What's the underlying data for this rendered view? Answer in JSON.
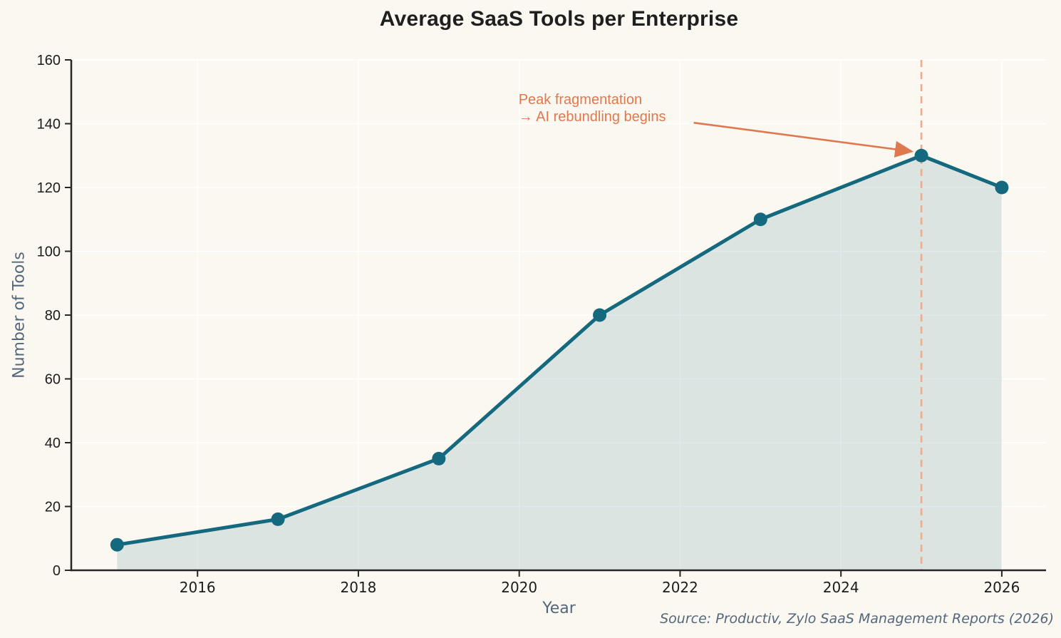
{
  "page": {
    "source_note": "Source: Productiv, Zylo SaaS Management Reports (2026)"
  },
  "chart_data": {
    "type": "area",
    "title": "Average SaaS Tools per Enterprise",
    "x": [
      2015,
      2017,
      2019,
      2021,
      2023,
      2025,
      2026
    ],
    "values": [
      8,
      16,
      35,
      80,
      110,
      130,
      120
    ],
    "xlabel": "Year",
    "ylabel": "Number of Tools",
    "xlim": [
      2014.43,
      2026.55
    ],
    "ylim": [
      0,
      160
    ],
    "xticks": [
      2016,
      2018,
      2020,
      2022,
      2024,
      2026
    ],
    "yticks": [
      0,
      20,
      40,
      60,
      80,
      100,
      120,
      140,
      160
    ],
    "grid": true,
    "legend": "none",
    "vline_x": 2025,
    "annotation": {
      "line1": "Peak fragmentation",
      "line2": "→ AI rebundling begins",
      "text_xy": [
        2020,
        150.2
      ],
      "arrow_from": [
        2022.17,
        140.3
      ],
      "arrow_to": [
        2024.88,
        131.3
      ]
    },
    "colors": {
      "background": "#faf8f0",
      "line": "#15697e",
      "marker": "#15697e",
      "fill": "#3c7d8c",
      "fill_opacity": 0.16,
      "grid": "#ffffff",
      "axis": "#262626",
      "tick_label": "#1c1c1c",
      "axis_label": "#55677b",
      "title": "#1f1f1f",
      "annotation": "#e0784f",
      "vline": "#efab8d",
      "source": "#55677b"
    }
  }
}
